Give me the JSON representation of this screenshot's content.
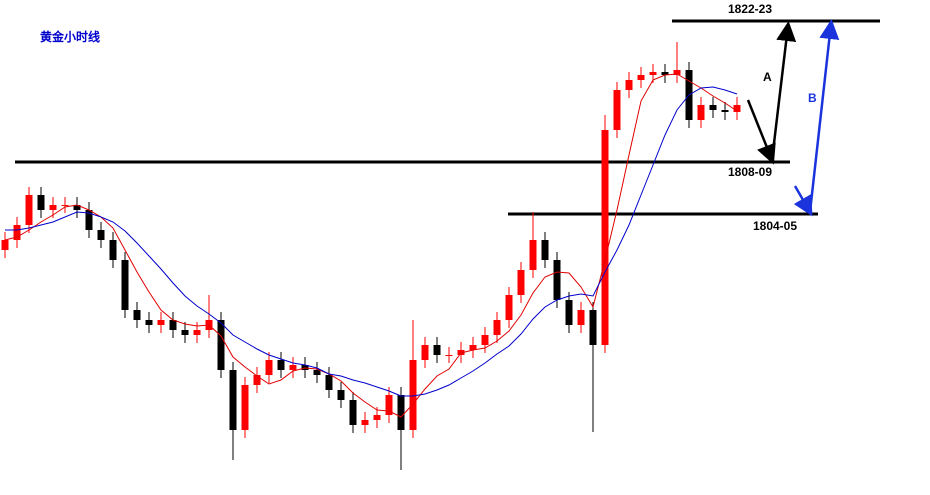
{
  "chart_data": {
    "type": "candlestick",
    "title": "黄金小时线",
    "ylim": [
      1775.5,
      1825
    ],
    "up_color": "#ff0000",
    "down_color": "#000000",
    "open": [
      1800.0,
      1801.0,
      1802.5,
      1805.5,
      1804.0,
      1804.5,
      1804.5,
      1804.0,
      1802.0,
      1801.0,
      1799.0,
      1794.0,
      1793.0,
      1792.5,
      1793.0,
      1792.0,
      1791.5,
      1792.0,
      1793.0,
      1788.0,
      1782.0,
      1786.5,
      1787.5,
      1789.0,
      1788.0,
      1788.5,
      1788.0,
      1787.5,
      1786.0,
      1785.0,
      1782.5,
      1783.0,
      1783.5,
      1785.5,
      1782.0,
      1789.0,
      1790.5,
      1789.5,
      1789.5,
      1790.0,
      1790.5,
      1791.5,
      1793.0,
      1795.5,
      1798.0,
      1801.0,
      1799.0,
      1795.0,
      1792.5,
      1794.0,
      1790.5,
      1812.0,
      1816.0,
      1817.0,
      1817.5,
      1817.8,
      1817.5,
      1818.0,
      1813.0,
      1814.5,
      1814.0,
      1813.8
    ],
    "high": [
      1801.8,
      1803.3,
      1806.3,
      1806.3,
      1805.3,
      1805.3,
      1805.3,
      1804.8,
      1802.8,
      1801.8,
      1799.8,
      1794.8,
      1793.8,
      1793.8,
      1793.8,
      1792.8,
      1792.8,
      1795.5,
      1793.8,
      1788.8,
      1787.3,
      1788.3,
      1789.8,
      1789.8,
      1789.3,
      1789.3,
      1788.8,
      1788.3,
      1786.8,
      1785.8,
      1783.8,
      1784.3,
      1786.3,
      1786.3,
      1793.0,
      1791.3,
      1791.3,
      1790.3,
      1790.8,
      1791.3,
      1792.3,
      1793.8,
      1796.3,
      1798.8,
      1803.8,
      1801.8,
      1799.8,
      1795.8,
      1794.8,
      1794.8,
      1813.5,
      1816.8,
      1817.8,
      1818.3,
      1818.6,
      1818.6,
      1820.8,
      1818.8,
      1815.3,
      1815.3,
      1814.8,
      1815.3
    ],
    "low": [
      1799.2,
      1800.2,
      1801.7,
      1803.2,
      1803.2,
      1803.7,
      1803.2,
      1801.2,
      1800.2,
      1798.2,
      1793.2,
      1792.2,
      1791.7,
      1791.7,
      1791.2,
      1790.7,
      1790.7,
      1791.2,
      1787.2,
      1779.0,
      1781.2,
      1785.7,
      1786.7,
      1787.2,
      1787.2,
      1787.2,
      1786.7,
      1785.2,
      1784.2,
      1781.7,
      1781.7,
      1782.2,
      1782.7,
      1778.0,
      1781.2,
      1788.2,
      1788.7,
      1788.7,
      1788.7,
      1789.2,
      1789.7,
      1790.7,
      1792.2,
      1794.7,
      1797.2,
      1798.2,
      1794.2,
      1791.7,
      1791.7,
      1781.8,
      1789.7,
      1811.2,
      1815.2,
      1816.2,
      1816.7,
      1816.7,
      1816.7,
      1812.2,
      1812.2,
      1813.2,
      1813.0,
      1813.0
    ],
    "close": [
      1801.0,
      1802.5,
      1805.5,
      1804.0,
      1804.5,
      1804.5,
      1804.0,
      1802.0,
      1801.0,
      1799.0,
      1794.0,
      1793.0,
      1792.5,
      1793.0,
      1792.0,
      1791.5,
      1792.0,
      1793.0,
      1788.0,
      1782.0,
      1786.5,
      1787.5,
      1789.0,
      1788.0,
      1788.5,
      1788.0,
      1787.5,
      1786.0,
      1785.0,
      1782.5,
      1783.0,
      1783.5,
      1785.5,
      1782.0,
      1789.0,
      1790.5,
      1789.5,
      1789.5,
      1790.0,
      1790.5,
      1791.5,
      1793.0,
      1795.5,
      1798.0,
      1801.0,
      1799.0,
      1795.0,
      1792.5,
      1794.0,
      1790.5,
      1812.0,
      1816.0,
      1817.0,
      1817.5,
      1817.8,
      1817.5,
      1818.0,
      1813.0,
      1814.5,
      1814.0,
      1813.8,
      1814.5
    ],
    "series": [
      {
        "color": "#e00000",
        "values": [
          1801.0,
          1801.3,
          1802.0,
          1802.8,
          1803.5,
          1804.3,
          1804.5,
          1804.0,
          1803.3,
          1802.2,
          1800.0,
          1797.8,
          1795.8,
          1794.0,
          1793.0,
          1792.6,
          1792.4,
          1792.5,
          1791.4,
          1789.3,
          1788.3,
          1787.4,
          1786.6,
          1787.0,
          1787.9,
          1788.2,
          1788.1,
          1787.6,
          1786.9,
          1785.7,
          1784.8,
          1784.0,
          1783.9,
          1783.3,
          1784.6,
          1786.1,
          1787.4,
          1788.1,
          1789.7,
          1790.0,
          1790.2,
          1790.9,
          1791.9,
          1793.5,
          1795.7,
          1797.3,
          1797.8,
          1797.7,
          1796.3,
          1794.3,
          1799.0,
          1804.0,
          1809.5,
          1814.9,
          1817.0,
          1817.5,
          1817.6,
          1816.9,
          1816.2,
          1815.4,
          1814.7,
          1813.9
        ]
      },
      {
        "color": "#0000cc",
        "values": [
          1802.0,
          1802.0,
          1802.2,
          1802.5,
          1802.8,
          1803.3,
          1803.8,
          1803.7,
          1803.3,
          1802.8,
          1801.9,
          1800.7,
          1799.4,
          1798.1,
          1796.7,
          1795.4,
          1794.4,
          1793.6,
          1792.7,
          1791.5,
          1790.8,
          1790.1,
          1789.5,
          1789.1,
          1788.7,
          1788.5,
          1788.2,
          1787.6,
          1787.4,
          1787.0,
          1786.7,
          1786.3,
          1785.9,
          1785.4,
          1785.4,
          1785.6,
          1786.0,
          1786.5,
          1787.2,
          1787.9,
          1788.7,
          1789.6,
          1790.4,
          1791.6,
          1793.1,
          1794.3,
          1795.0,
          1795.4,
          1795.6,
          1795.4,
          1797.8,
          1800.0,
          1802.5,
          1805.5,
          1808.5,
          1811.5,
          1814.0,
          1815.5,
          1816.2,
          1816.3,
          1816.0,
          1815.6
        ]
      }
    ],
    "levels": [
      {
        "value": 1822.9,
        "label": "1822-23"
      },
      {
        "value": 1808.8,
        "label": "1808-09"
      },
      {
        "value": 1803.6,
        "label": "1804-05"
      }
    ],
    "annotations": [
      "A",
      "B"
    ]
  }
}
